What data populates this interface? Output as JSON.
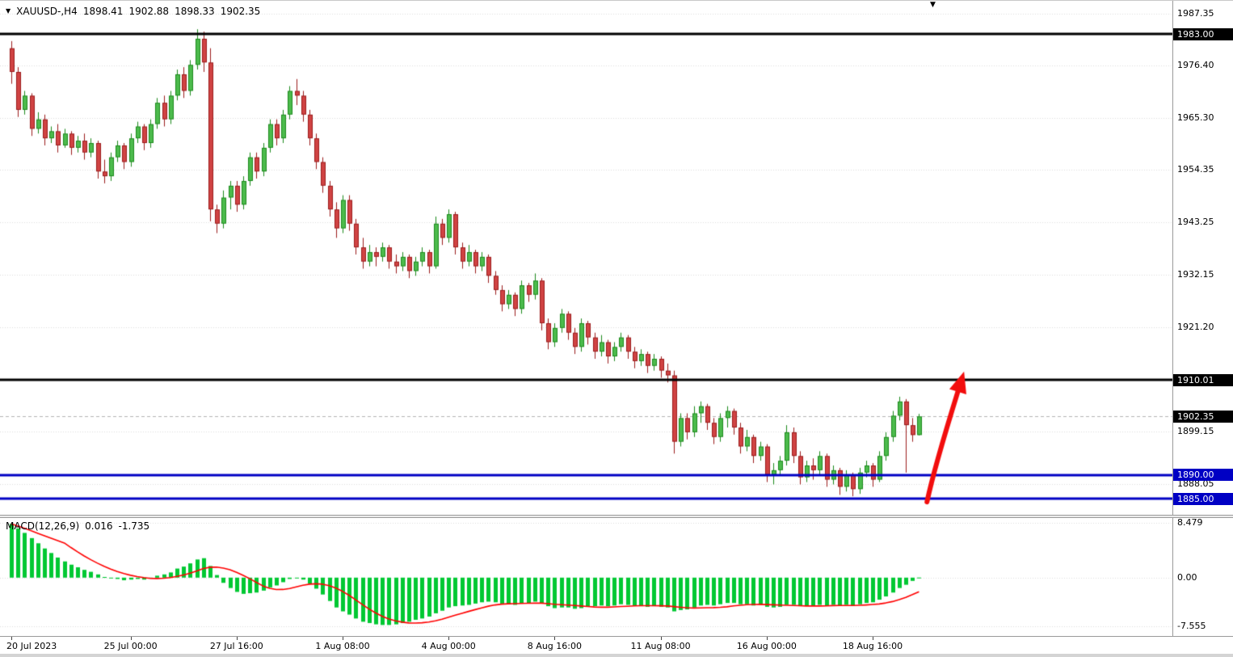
{
  "header": {
    "marker_glyph": "▼",
    "symbol_timeframe": "XAUUSD-,H4",
    "open": "1898.41",
    "high": "1902.88",
    "low": "1898.33",
    "close": "1902.35"
  },
  "shift_marker_glyph": "▼",
  "price_axis": {
    "ticks": [
      {
        "label": "1987.35",
        "price": 1987.35
      },
      {
        "label": "1976.40",
        "price": 1976.4
      },
      {
        "label": "1965.30",
        "price": 1965.3
      },
      {
        "label": "1954.35",
        "price": 1954.35
      },
      {
        "label": "1943.25",
        "price": 1943.25
      },
      {
        "label": "1932.15",
        "price": 1932.15
      },
      {
        "label": "1921.20",
        "price": 1921.2
      },
      {
        "label": "1899.15",
        "price": 1899.15
      },
      {
        "label": "1888.05",
        "price": 1888.05
      }
    ],
    "badges": [
      {
        "label": "1983.00",
        "price": 1983.0,
        "bg": "#000000"
      },
      {
        "label": "1910.01",
        "price": 1910.01,
        "bg": "#000000"
      },
      {
        "label": "1888.05",
        "price": 1888.05,
        "bg": "#ffffff00"
      },
      {
        "label": "1902.35",
        "price": 1902.35,
        "bg": "#000000"
      },
      {
        "label": "1890.00",
        "price": 1890.0,
        "bg": "#0000C4"
      },
      {
        "label": "1885.00",
        "price": 1885.0,
        "bg": "#0000C4"
      }
    ]
  },
  "time_axis": {
    "labels": [
      {
        "text": "20 Jul 2023",
        "index": 0,
        "align": "left"
      },
      {
        "text": "25 Jul 00:00",
        "index": 18,
        "align": "center"
      },
      {
        "text": "27 Jul 16:00",
        "index": 34,
        "align": "center"
      },
      {
        "text": "1 Aug 08:00",
        "index": 50,
        "align": "center"
      },
      {
        "text": "4 Aug 00:00",
        "index": 66,
        "align": "center"
      },
      {
        "text": "8 Aug 16:00",
        "index": 82,
        "align": "center"
      },
      {
        "text": "11 Aug 08:00",
        "index": 98,
        "align": "center"
      },
      {
        "text": "16 Aug 00:00",
        "index": 114,
        "align": "center"
      },
      {
        "text": "18 Aug 16:00",
        "index": 130,
        "align": "center"
      }
    ]
  },
  "macd": {
    "name": "MACD(12,26,9)",
    "main_value": "0.016",
    "signal_value": "-1.735",
    "axis_ticks": [
      {
        "label": "8.479",
        "value": 8.479
      },
      {
        "label": "0.00",
        "value": 0
      },
      {
        "label": "-7.555",
        "value": -7.555
      }
    ]
  },
  "colors": {
    "up_fill": "#4CBB4C",
    "up_border": "#1C8A1C",
    "down_fill": "#D04343",
    "down_border": "#9B1C1C",
    "macd_histogram": "#00C832",
    "macd_signal": "#FF0000",
    "grid": "#DCDCDC",
    "current_price_line": "#B4B4B4",
    "badge_fg": "#FFFFFF"
  },
  "chart_data": {
    "type": "candlestick",
    "title": "XAUUSD- H4 chart with MACD(12,26,9), support/resistance lines and bullish arrow",
    "symbol": "XAUUSD-",
    "timeframe": "H4",
    "price_axis_range": {
      "top": 1990.0,
      "bottom": 1881.6
    },
    "current_price": 1902.35,
    "hlines": [
      {
        "price": 1983.0,
        "color": "#000000",
        "width": 3
      },
      {
        "price": 1910.01,
        "color": "#000000",
        "width": 3
      },
      {
        "price": 1890.0,
        "color": "#0000C4",
        "width": 3
      },
      {
        "price": 1885.0,
        "color": "#0000C4",
        "width": 3
      }
    ],
    "candles": [
      [
        1980,
        1981.5,
        1972.5,
        1975
      ],
      [
        1975,
        1976,
        1965.5,
        1967
      ],
      [
        1967,
        1971,
        1966,
        1970
      ],
      [
        1970,
        1970.5,
        1961.5,
        1963
      ],
      [
        1963,
        1966.5,
        1962,
        1965
      ],
      [
        1965,
        1966,
        1959.5,
        1961
      ],
      [
        1961,
        1963.5,
        1960,
        1962.5
      ],
      [
        1962.5,
        1964,
        1958,
        1959.5
      ],
      [
        1959.5,
        1963,
        1959,
        1962
      ],
      [
        1962,
        1962.5,
        1957.5,
        1959
      ],
      [
        1959,
        1961.5,
        1958,
        1960.5
      ],
      [
        1960.5,
        1962,
        1956.5,
        1958
      ],
      [
        1958,
        1961,
        1957,
        1960
      ],
      [
        1960,
        1960.5,
        1952.5,
        1954
      ],
      [
        1954,
        1956.5,
        1951.5,
        1953
      ],
      [
        1953,
        1958,
        1952,
        1957
      ],
      [
        1957,
        1960.5,
        1956,
        1959.5
      ],
      [
        1959.5,
        1960,
        1954.5,
        1956
      ],
      [
        1956,
        1962,
        1955,
        1961
      ],
      [
        1961,
        1964.5,
        1960,
        1963.5
      ],
      [
        1963.5,
        1964,
        1958.5,
        1960
      ],
      [
        1960,
        1965,
        1959,
        1964
      ],
      [
        1964,
        1969.5,
        1963,
        1968.5
      ],
      [
        1968.5,
        1970,
        1963.5,
        1965
      ],
      [
        1965,
        1971,
        1964,
        1970
      ],
      [
        1970,
        1975.5,
        1969,
        1974.5
      ],
      [
        1974.5,
        1976,
        1969.5,
        1971
      ],
      [
        1971,
        1977.5,
        1970,
        1976.5
      ],
      [
        1976.5,
        1984,
        1975.5,
        1982
      ],
      [
        1982,
        1983.5,
        1975,
        1977
      ],
      [
        1977,
        1980,
        1943.5,
        1946
      ],
      [
        1946,
        1947,
        1941,
        1943
      ],
      [
        1943,
        1950,
        1942,
        1948.5
      ],
      [
        1948.5,
        1952,
        1946,
        1951
      ],
      [
        1951,
        1952,
        1945.5,
        1947
      ],
      [
        1947,
        1953,
        1946,
        1952
      ],
      [
        1952,
        1958,
        1951,
        1957
      ],
      [
        1957,
        1958,
        1952.5,
        1954
      ],
      [
        1954,
        1960,
        1953,
        1959
      ],
      [
        1959,
        1965,
        1958,
        1964
      ],
      [
        1964,
        1965,
        1959.5,
        1961
      ],
      [
        1961,
        1967,
        1960,
        1966
      ],
      [
        1966,
        1972,
        1965,
        1971
      ],
      [
        1971,
        1973.5,
        1968,
        1970
      ],
      [
        1970,
        1971,
        1964.5,
        1966
      ],
      [
        1966,
        1967,
        1959.5,
        1961
      ],
      [
        1961,
        1962,
        1954.5,
        1956
      ],
      [
        1956,
        1957,
        1949.5,
        1951
      ],
      [
        1951,
        1952,
        1944.5,
        1946
      ],
      [
        1946,
        1947.5,
        1940,
        1942
      ],
      [
        1942,
        1949,
        1941,
        1948
      ],
      [
        1948,
        1949,
        1941.5,
        1943
      ],
      [
        1943,
        1944,
        1936.5,
        1938
      ],
      [
        1938,
        1940,
        1933.5,
        1935
      ],
      [
        1935,
        1938.5,
        1934,
        1937
      ],
      [
        1937,
        1938,
        1934,
        1936
      ],
      [
        1936,
        1939,
        1935,
        1938
      ],
      [
        1938,
        1938.5,
        1933.5,
        1935
      ],
      [
        1935,
        1936.5,
        1932.5,
        1934
      ],
      [
        1934,
        1937,
        1933,
        1936
      ],
      [
        1936,
        1936.5,
        1931.5,
        1933
      ],
      [
        1933,
        1936,
        1932,
        1935
      ],
      [
        1935,
        1938,
        1934,
        1937
      ],
      [
        1937,
        1937.5,
        1932.5,
        1934
      ],
      [
        1934,
        1944.5,
        1933.5,
        1943
      ],
      [
        1943,
        1944,
        1938.5,
        1940
      ],
      [
        1940,
        1946,
        1939,
        1945
      ],
      [
        1945,
        1945.5,
        1936.5,
        1938
      ],
      [
        1938,
        1939,
        1933.5,
        1935
      ],
      [
        1935,
        1938.5,
        1934,
        1937
      ],
      [
        1937,
        1937.5,
        1932.5,
        1934
      ],
      [
        1934,
        1937,
        1933,
        1936
      ],
      [
        1936,
        1936.5,
        1930.5,
        1932
      ],
      [
        1932,
        1933,
        1928,
        1929
      ],
      [
        1929,
        1930,
        1924.5,
        1926
      ],
      [
        1926,
        1929,
        1925,
        1928
      ],
      [
        1928,
        1928.5,
        1923.5,
        1925
      ],
      [
        1925,
        1931,
        1924,
        1930
      ],
      [
        1930,
        1930.5,
        1926.5,
        1928
      ],
      [
        1928,
        1932.5,
        1927,
        1931
      ],
      [
        1931,
        1931.5,
        1920.5,
        1922
      ],
      [
        1922,
        1923,
        1916.5,
        1918
      ],
      [
        1918,
        1922,
        1917,
        1921
      ],
      [
        1921,
        1925,
        1920,
        1924
      ],
      [
        1924,
        1924.5,
        1918.5,
        1920
      ],
      [
        1920,
        1921,
        1915.5,
        1917
      ],
      [
        1917,
        1923,
        1916,
        1922
      ],
      [
        1922,
        1922.5,
        1917.5,
        1919
      ],
      [
        1919,
        1920,
        1914.5,
        1916
      ],
      [
        1916,
        1919.5,
        1915,
        1918
      ],
      [
        1918,
        1918.5,
        1913.5,
        1915
      ],
      [
        1915,
        1918,
        1914,
        1917
      ],
      [
        1917,
        1920,
        1916,
        1919
      ],
      [
        1919,
        1919.5,
        1914.5,
        1916
      ],
      [
        1916,
        1917,
        1912.5,
        1914
      ],
      [
        1914,
        1916.5,
        1913,
        1915.5
      ],
      [
        1915.5,
        1916,
        1911.5,
        1913
      ],
      [
        1913,
        1915.5,
        1912,
        1914.5
      ],
      [
        1914.5,
        1915,
        1910.5,
        1912
      ],
      [
        1912,
        1913.5,
        1909.5,
        1911
      ],
      [
        1911,
        1912,
        1894.5,
        1897
      ],
      [
        1897,
        1903,
        1896,
        1902
      ],
      [
        1902,
        1903,
        1897.5,
        1899
      ],
      [
        1899,
        1904.5,
        1898,
        1903
      ],
      [
        1903,
        1905.5,
        1901,
        1904.5
      ],
      [
        1904.5,
        1905,
        1899.5,
        1901
      ],
      [
        1901,
        1902,
        1896.5,
        1898
      ],
      [
        1898,
        1903,
        1897,
        1902
      ],
      [
        1902,
        1904.5,
        1900,
        1903.5
      ],
      [
        1903.5,
        1904,
        1898.5,
        1900
      ],
      [
        1900,
        1901,
        1894.5,
        1896
      ],
      [
        1896,
        1899.5,
        1895,
        1898
      ],
      [
        1898,
        1898.5,
        1892.5,
        1894
      ],
      [
        1894,
        1897,
        1893,
        1896
      ],
      [
        1896,
        1896.5,
        1888.5,
        1890
      ],
      [
        1890,
        1892.5,
        1888,
        1891
      ],
      [
        1891,
        1894,
        1890,
        1893
      ],
      [
        1893,
        1900.5,
        1892,
        1899
      ],
      [
        1899,
        1900,
        1892.5,
        1894
      ],
      [
        1894,
        1895,
        1888,
        1889.5
      ],
      [
        1889.5,
        1893,
        1888.5,
        1892
      ],
      [
        1892,
        1893.5,
        1889,
        1891
      ],
      [
        1891,
        1895,
        1890,
        1894
      ],
      [
        1894,
        1894.5,
        1887.5,
        1889
      ],
      [
        1889,
        1892,
        1888,
        1891
      ],
      [
        1891,
        1891.5,
        1885.8,
        1887.5
      ],
      [
        1887.5,
        1891,
        1886.5,
        1890
      ],
      [
        1890,
        1890.5,
        1885.5,
        1887
      ],
      [
        1887,
        1891.5,
        1886,
        1890.5
      ],
      [
        1890.5,
        1893,
        1889.5,
        1892
      ],
      [
        1892,
        1892.5,
        1887.5,
        1889
      ],
      [
        1889,
        1895,
        1888.5,
        1894
      ],
      [
        1894,
        1899,
        1893,
        1898
      ],
      [
        1898,
        1903.5,
        1897,
        1902.5
      ],
      [
        1902.5,
        1906.5,
        1901.5,
        1905.5
      ],
      [
        1905.5,
        1906,
        1890.5,
        1900.5
      ],
      [
        1900.5,
        1902,
        1897,
        1898.41
      ],
      [
        1898.41,
        1902.88,
        1898.33,
        1902.35
      ]
    ],
    "indicator": {
      "type": "MACD",
      "params": [
        12,
        26,
        9
      ],
      "axis_range": {
        "top": 9.2,
        "bottom": -9.0
      },
      "signal_period": 9,
      "histogram": [
        8.3,
        7.6,
        6.9,
        6.1,
        5.3,
        4.5,
        3.8,
        3.1,
        2.5,
        2.0,
        1.6,
        1.2,
        0.9,
        0.5,
        0.1,
        -0.1,
        -0.2,
        -0.4,
        -0.3,
        -0.2,
        -0.3,
        -0.1,
        0.3,
        0.5,
        0.8,
        1.4,
        1.7,
        2.2,
        2.8,
        3.0,
        1.8,
        0.4,
        -0.8,
        -1.6,
        -2.2,
        -2.5,
        -2.4,
        -2.3,
        -2.0,
        -1.5,
        -1.2,
        -0.7,
        -0.2,
        0.0,
        -0.3,
        -0.9,
        -1.7,
        -2.6,
        -3.6,
        -4.6,
        -5.2,
        -5.7,
        -6.3,
        -6.8,
        -7.0,
        -7.2,
        -7.3,
        -7.3,
        -7.2,
        -7.0,
        -6.8,
        -6.5,
        -6.3,
        -6.0,
        -5.5,
        -5.1,
        -4.6,
        -4.4,
        -4.3,
        -4.2,
        -4.0,
        -3.8,
        -3.7,
        -3.8,
        -4.0,
        -4.1,
        -4.2,
        -4.0,
        -3.9,
        -3.7,
        -4.0,
        -4.4,
        -4.7,
        -4.6,
        -4.6,
        -4.8,
        -4.7,
        -4.5,
        -4.4,
        -4.3,
        -4.4,
        -4.3,
        -4.1,
        -4.2,
        -4.3,
        -4.4,
        -4.5,
        -4.4,
        -4.5,
        -4.6,
        -5.2,
        -5.0,
        -4.9,
        -4.6,
        -4.3,
        -4.2,
        -4.3,
        -4.1,
        -3.9,
        -3.9,
        -4.1,
        -4.1,
        -4.3,
        -4.2,
        -4.5,
        -4.6,
        -4.5,
        -4.2,
        -4.2,
        -4.4,
        -4.4,
        -4.4,
        -4.2,
        -4.3,
        -4.2,
        -4.3,
        -4.2,
        -4.3,
        -4.1,
        -3.9,
        -3.8,
        -3.4,
        -2.9,
        -2.3,
        -1.6,
        -1.1,
        -0.5,
        0.016
      ]
    },
    "annotations": {
      "arrow": {
        "from": {
          "index": 138.2,
          "price": 1884.3
        },
        "control": {
          "index": 139.3,
          "price": 1891.5
        },
        "to": {
          "index": 143.8,
          "price": 1911.8
        },
        "color": "#F20D0D"
      }
    }
  }
}
